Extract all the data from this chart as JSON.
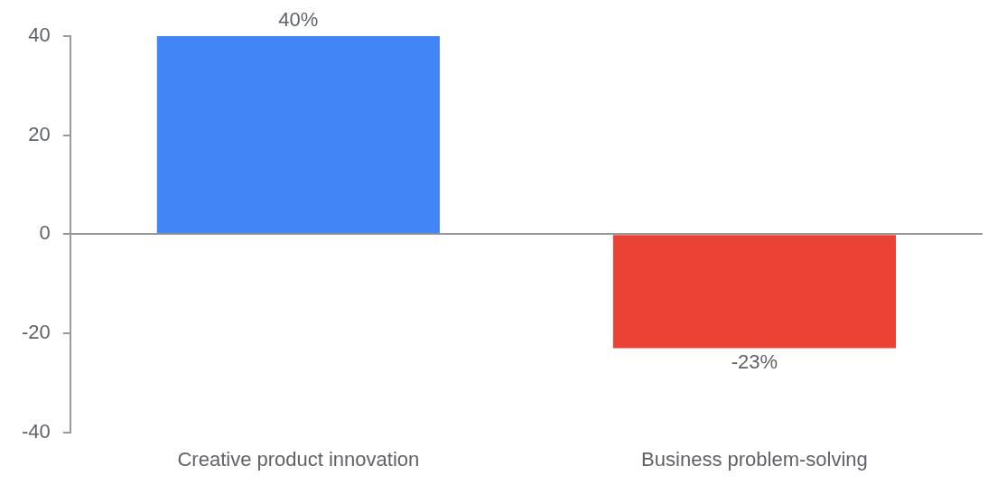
{
  "chart_data": {
    "type": "bar",
    "categories": [
      "Creative product innovation",
      "Business problem-solving"
    ],
    "values": [
      40,
      -23
    ],
    "colors": [
      "#4285f4",
      "#ea4335"
    ],
    "value_labels": [
      "40%",
      "-23%"
    ],
    "ylim": [
      -40,
      40
    ],
    "yticks": [
      -40,
      -20,
      0,
      20,
      40
    ]
  }
}
